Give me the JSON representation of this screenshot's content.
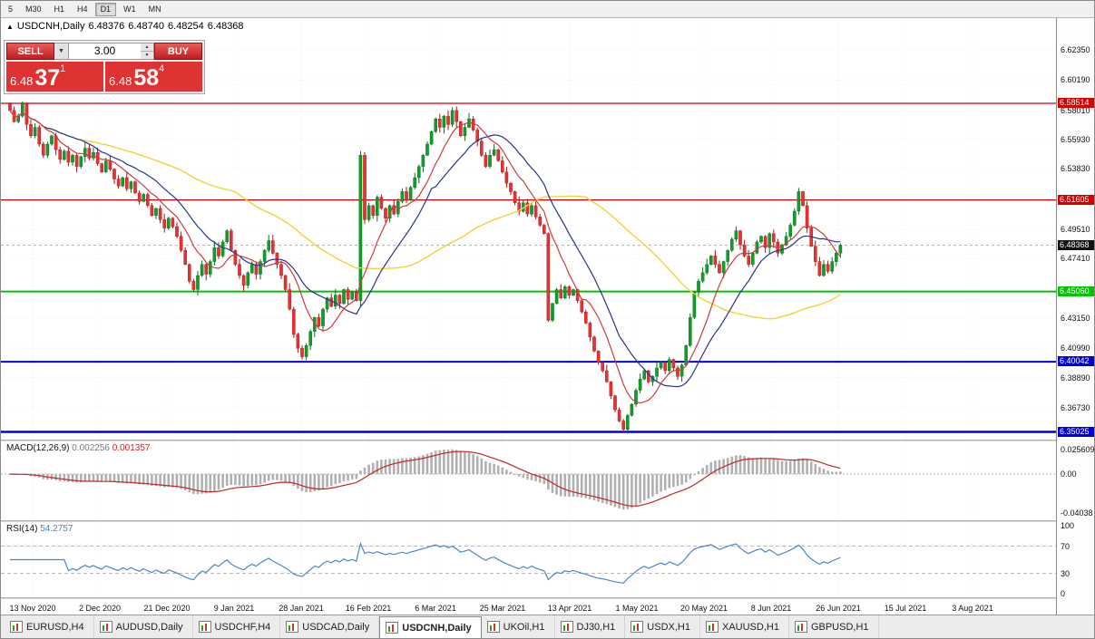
{
  "toolbar": {
    "timeframes": [
      "5",
      "M30",
      "H1",
      "H4",
      "D1",
      "W1",
      "MN"
    ],
    "active": "D1"
  },
  "chart": {
    "symbol": "USDCNH,Daily",
    "open": "6.48376",
    "high": "6.48740",
    "low": "6.48254",
    "close": "6.48368"
  },
  "trade_panel": {
    "sell_label": "SELL",
    "buy_label": "BUY",
    "volume": "3.00",
    "sell_price": {
      "prefix": "6.48",
      "big": "37",
      "sup": "1"
    },
    "buy_price": {
      "prefix": "6.48",
      "big": "58",
      "sup": "4"
    }
  },
  "axis": {
    "price_ticks": [
      "6.62350",
      "6.60190",
      "6.58010",
      "6.55930",
      "6.53830",
      "6.49510",
      "6.47410",
      "6.43150",
      "6.40990",
      "6.38890",
      "6.36730"
    ],
    "dates": [
      "13 Nov 2020",
      "2 Dec 2020",
      "21 Dec 2020",
      "9 Jan 2021",
      "28 Jan 2021",
      "16 Feb 2021",
      "6 Mar 2021",
      "25 Mar 2021",
      "13 Apr 2021",
      "1 May 2021",
      "20 May 2021",
      "8 Jun 2021",
      "26 Jun 2021",
      "15 Jul 2021",
      "3 Aug 2021"
    ]
  },
  "lines": [
    {
      "price": 6.58514,
      "label": "6.58514",
      "color": "#d40000",
      "width": 1.2
    },
    {
      "price": 6.51605,
      "label": "6.51605",
      "color": "#d40000",
      "width": 1.2
    },
    {
      "price": 6.4506,
      "label": "6.45060",
      "color": "#00c400",
      "width": 2
    },
    {
      "price": 6.40042,
      "label": "6.40042",
      "color": "#0000dd",
      "width": 2
    },
    {
      "price": 6.35025,
      "label": "6.35025",
      "color": "#0000dd",
      "width": 2.5
    }
  ],
  "current_price": {
    "value": 6.48368,
    "label": "6.48368",
    "color": "#111111"
  },
  "macd": {
    "name": "MACD(12,26,9)",
    "value_main": "0.002256",
    "value_signal": "0.001357",
    "axis": [
      "0.025609",
      "0.00",
      "-0.04038"
    ]
  },
  "rsi": {
    "name": "RSI(14)",
    "value": "54.2757",
    "axis": [
      "100",
      "70",
      "30",
      "0"
    ],
    "levels": [
      70,
      30
    ]
  },
  "tabs": [
    {
      "label": "EURUSD,H4"
    },
    {
      "label": "AUDUSD,Daily"
    },
    {
      "label": "USDCHF,H4"
    },
    {
      "label": "USDCAD,Daily"
    },
    {
      "label": "USDCNH,Daily",
      "active": true
    },
    {
      "label": "UKOil,H1"
    },
    {
      "label": "DJ30,H1"
    },
    {
      "label": "USDX,H1"
    },
    {
      "label": "XAUUSD,H1"
    },
    {
      "label": "GBPUSD,H1"
    }
  ],
  "chart_data": {
    "type": "candlestick",
    "symbol": "USDCNH",
    "timeframe": "Daily",
    "ohlc": {
      "o": 6.48376,
      "h": 6.4874,
      "l": 6.48254,
      "c": 6.48368
    },
    "date_range": [
      "13 Nov 2020",
      "3 Aug 2021"
    ],
    "y_axis": {
      "min": 6.345,
      "max": 6.646
    },
    "horizontal_levels": [
      6.58514,
      6.51605,
      6.4506,
      6.40042,
      6.35025
    ],
    "indicators": [
      {
        "name": "MACD",
        "params": [
          12,
          26,
          9
        ],
        "values": [
          0.002256,
          0.001357
        ]
      },
      {
        "name": "RSI",
        "params": [
          14
        ],
        "value": 54.2757
      },
      {
        "name": "MA-overlays",
        "colors": [
          "yellow-slow",
          "darkblue-medium",
          "red-fast"
        ]
      }
    ],
    "closes": [
      6.58,
      6.572,
      6.576,
      6.585,
      6.57,
      6.562,
      6.568,
      6.556,
      6.548,
      6.556,
      6.562,
      6.552,
      6.545,
      6.551,
      6.543,
      6.548,
      6.54,
      6.547,
      6.553,
      6.546,
      6.55,
      6.542,
      6.536,
      6.544,
      6.538,
      6.531,
      6.526,
      6.532,
      6.524,
      6.529,
      6.521,
      6.515,
      6.52,
      6.512,
      6.505,
      6.51,
      6.502,
      6.496,
      6.503,
      6.497,
      6.49,
      6.48,
      6.47,
      6.458,
      6.452,
      6.462,
      6.47,
      6.463,
      6.472,
      6.482,
      6.476,
      6.486,
      6.494,
      6.48,
      6.47,
      6.462,
      6.455,
      6.464,
      6.47,
      6.463,
      6.472,
      6.48,
      6.487,
      6.478,
      6.47,
      6.462,
      6.452,
      6.438,
      6.42,
      6.41,
      6.404,
      6.412,
      6.422,
      6.432,
      6.426,
      6.438,
      6.446,
      6.44,
      6.448,
      6.442,
      6.452,
      6.445,
      6.45,
      6.444,
      6.548,
      6.502,
      6.512,
      6.505,
      6.518,
      6.51,
      6.503,
      6.512,
      6.506,
      6.515,
      6.522,
      6.516,
      6.525,
      6.532,
      6.54,
      6.548,
      6.556,
      6.565,
      6.574,
      6.568,
      6.576,
      6.57,
      6.58,
      6.572,
      6.562,
      6.568,
      6.574,
      6.566,
      6.558,
      6.548,
      6.54,
      6.548,
      6.552,
      6.544,
      6.536,
      6.528,
      6.522,
      6.514,
      6.508,
      6.514,
      6.506,
      6.512,
      6.504,
      6.498,
      6.492,
      6.43,
      6.442,
      6.452,
      6.446,
      6.454,
      6.448,
      6.452,
      6.444,
      6.436,
      6.428,
      6.418,
      6.408,
      6.4,
      6.394,
      6.386,
      6.376,
      6.366,
      6.358,
      6.352,
      6.362,
      6.37,
      6.38,
      6.388,
      6.394,
      6.386,
      6.39,
      6.396,
      6.4,
      6.394,
      6.402,
      6.396,
      6.39,
      6.398,
      6.412,
      6.432,
      6.45,
      6.458,
      6.464,
      6.47,
      6.476,
      6.47,
      6.464,
      6.472,
      6.48,
      6.488,
      6.494,
      6.484,
      6.476,
      6.47,
      6.478,
      6.486,
      6.49,
      6.482,
      6.492,
      6.486,
      6.478,
      6.484,
      6.49,
      6.498,
      6.508,
      6.522,
      6.512,
      6.496,
      6.483,
      6.472,
      6.462,
      6.47,
      6.465,
      6.472,
      6.478,
      6.4837
    ]
  }
}
